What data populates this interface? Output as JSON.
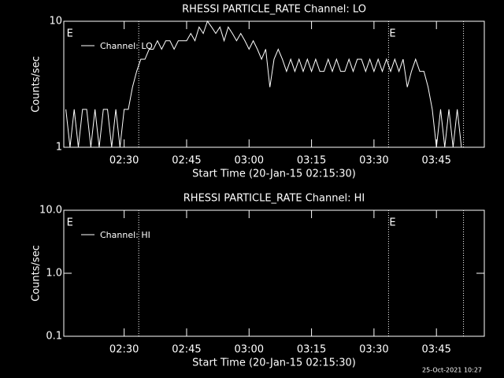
{
  "chart_data": [
    {
      "type": "line",
      "title": "RHESSI PARTICLE_RATE Channel: LO",
      "xlabel": "Start Time (20-Jan-15 02:15:30)",
      "ylabel": "Counts/sec",
      "ylog": true,
      "ylim": [
        1,
        10
      ],
      "yticks": [
        1,
        10
      ],
      "xlim": [
        "02:15:30",
        "03:56:30"
      ],
      "xticks": [
        "02:30",
        "02:45",
        "03:00",
        "03:15",
        "03:30",
        "03:45"
      ],
      "markers": [
        "02:33:30",
        "03:33:30",
        "03:51:30"
      ],
      "flags": [
        {
          "time": "02:16",
          "label": "E"
        },
        {
          "time": "03:33:30",
          "label": "E"
        }
      ],
      "x": [
        "02:16",
        "02:17",
        "02:18",
        "02:19",
        "02:20",
        "02:21",
        "02:22",
        "02:23",
        "02:24",
        "02:25",
        "02:26",
        "02:27",
        "02:28",
        "02:29",
        "02:30",
        "02:31",
        "02:32",
        "02:33",
        "02:34",
        "02:35",
        "02:36",
        "02:37",
        "02:38",
        "02:39",
        "02:40",
        "02:41",
        "02:42",
        "02:43",
        "02:44",
        "02:45",
        "02:46",
        "02:47",
        "02:48",
        "02:49",
        "02:50",
        "02:51",
        "02:52",
        "02:53",
        "02:54",
        "02:55",
        "02:56",
        "02:57",
        "02:58",
        "02:59",
        "03:00",
        "03:01",
        "03:02",
        "03:03",
        "03:04",
        "03:05",
        "03:06",
        "03:07",
        "03:08",
        "03:09",
        "03:10",
        "03:11",
        "03:12",
        "03:13",
        "03:14",
        "03:15",
        "03:16",
        "03:17",
        "03:18",
        "03:19",
        "03:20",
        "03:21",
        "03:22",
        "03:23",
        "03:24",
        "03:25",
        "03:26",
        "03:27",
        "03:28",
        "03:29",
        "03:30",
        "03:31",
        "03:32",
        "03:33",
        "03:34",
        "03:35",
        "03:36",
        "03:37",
        "03:38",
        "03:39",
        "03:40",
        "03:41",
        "03:42",
        "03:43",
        "03:44",
        "03:45",
        "03:46",
        "03:47",
        "03:48",
        "03:49",
        "03:50",
        "03:51",
        "03:52",
        "03:53",
        "03:54",
        "03:55",
        "03:56"
      ],
      "series": [
        {
          "name": "Channel: LO",
          "color": "#ffffff",
          "values": [
            2,
            1,
            2,
            1,
            2,
            2,
            1,
            2,
            1,
            2,
            2,
            1,
            2,
            1,
            2,
            2,
            3,
            4,
            5,
            5,
            6,
            6,
            7,
            6,
            7,
            7,
            6,
            7,
            7,
            7,
            8,
            7,
            9,
            8,
            10,
            9,
            8,
            9,
            7,
            9,
            8,
            7,
            8,
            7,
            6,
            7,
            6,
            5,
            6,
            3,
            5,
            6,
            5,
            4,
            5,
            4,
            5,
            4,
            5,
            4,
            5,
            4,
            4,
            5,
            4,
            5,
            4,
            4,
            5,
            4,
            5,
            5,
            4,
            5,
            4,
            5,
            4,
            5,
            4,
            5,
            4,
            5,
            3,
            4,
            5,
            4,
            4,
            3,
            2,
            1,
            2,
            1,
            2,
            1,
            2,
            1,
            1,
            1,
            1,
            1,
            1
          ]
        }
      ]
    },
    {
      "type": "line",
      "title": "RHESSI PARTICLE_RATE Channel: HI",
      "xlabel": "Start Time (20-Jan-15 02:15:30)",
      "ylabel": "Counts/sec",
      "ylog": true,
      "ylim": [
        0.1,
        10
      ],
      "yticks": [
        0.1,
        {
          "value": 1,
          "label": "1.0"
        },
        {
          "value": 10,
          "label": "10.0"
        }
      ],
      "xlim": [
        "02:15:30",
        "03:56:30"
      ],
      "xticks": [
        "02:30",
        "02:45",
        "03:00",
        "03:15",
        "03:30",
        "03:45"
      ],
      "markers": [
        "02:33:30",
        "03:33:30",
        "03:51:30"
      ],
      "flags": [
        {
          "time": "02:16",
          "label": "E"
        },
        {
          "time": "03:33:30",
          "label": "E"
        }
      ],
      "x": [],
      "series": [
        {
          "name": "Channel: HI",
          "color": "#ffffff",
          "values": []
        }
      ]
    }
  ],
  "footer": "25-Oct-2021 10:27"
}
